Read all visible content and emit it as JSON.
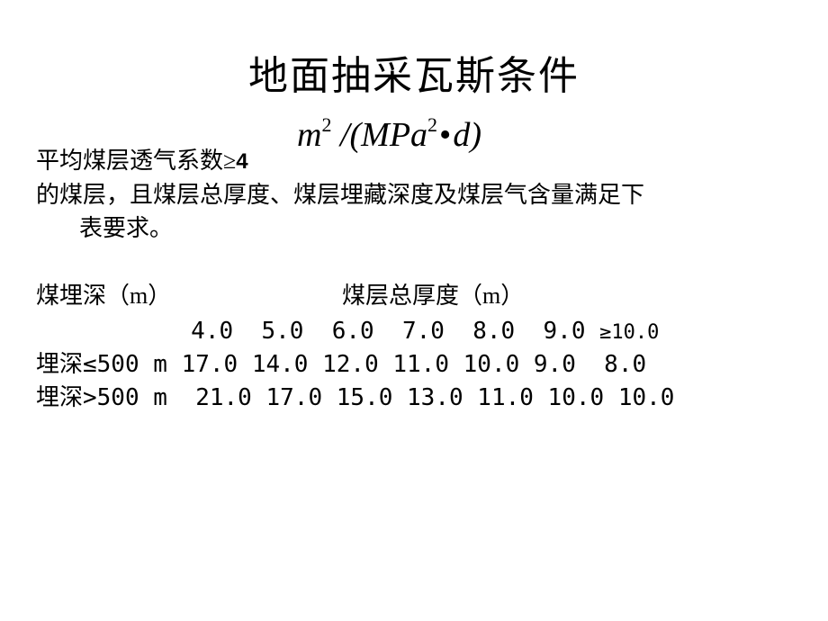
{
  "title": "地面抽采瓦斯条件",
  "formula": {
    "m": "m",
    "sup2a": "2",
    "slash": " /(",
    "mpa": "MPa",
    "sup2b": "2",
    "dot": "•",
    "d": "d",
    "close": ")"
  },
  "body": {
    "line1_pre": "平均煤层透气系数≥",
    "line1_num": "4",
    "line2": "的煤层，且煤层总厚度、煤层埋藏深度及煤层气含量满足下",
    "line3": "表要求。"
  },
  "headers": {
    "left": "煤埋深（m）",
    "right": "煤层总厚度（m）"
  },
  "table": {
    "thickness_row_prefix": "          ",
    "thickness_values": [
      "4.0",
      "5.0",
      "6.0",
      "7.0",
      "8.0",
      "9.0"
    ],
    "thickness_last": "≥10.0",
    "rows": [
      {
        "label": "埋深≤500 m",
        "values": [
          "17.0",
          "14.0",
          "12.0",
          "11.0",
          "10.0",
          "9.0",
          " 8.0"
        ]
      },
      {
        "label": "埋深>500 m ",
        "values": [
          "21.0",
          "17.0",
          "15.0",
          "13.0",
          "11.0",
          "10.0",
          "10.0"
        ]
      }
    ]
  },
  "style": {
    "background": "#ffffff",
    "text_color": "#000000",
    "title_fontsize": 44,
    "body_fontsize": 26,
    "formula_fontsize": 38
  }
}
